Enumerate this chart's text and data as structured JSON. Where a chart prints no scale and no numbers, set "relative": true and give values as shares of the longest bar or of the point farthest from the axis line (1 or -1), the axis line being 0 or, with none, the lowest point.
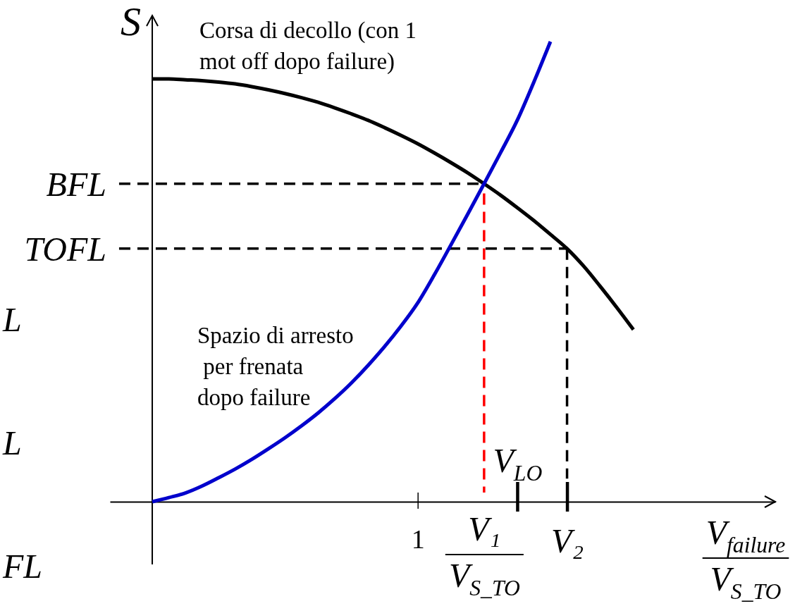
{
  "chart_data": {
    "type": "line",
    "ylabel": "S",
    "xlabel": "V$_{failure}$\nV$_{S_TO}$",
    "relative": true,
    "categories": [
      null,
      null,
      null,
      null,
      null,
      null,
      null,
      null,
      null,
      null,
      null,
      null,
      null,
      null,
      null,
      null,
      null,
      null,
      "1",
      null,
      null,
      null,
      "V₁\nV$_{S_TO}$",
      null,
      "V$_{LO}$",
      null,
      null,
      "V₂",
      null,
      null,
      null,
      null,
      null,
      null,
      null,
      null,
      null,
      null,
      null,
      null
    ],
    "series": [
      {
        "name": "Corsa di decollo (con 1\nmot off dopo failure)",
        "color": "#000000",
        "values": [
          null,
          null,
          0.919,
          0.919,
          0.917,
          0.915,
          0.912,
          0.908,
          0.902,
          0.895,
          0.887,
          0.878,
          0.868,
          0.856,
          0.843,
          0.829,
          0.813,
          0.796,
          0.778,
          0.758,
          0.737,
          0.715,
          0.691,
          0.666,
          0.639,
          0.611,
          0.581,
          0.55,
          0.512,
          0.468,
          0.422,
          0.374,
          null,
          null,
          null,
          null,
          null,
          null,
          null,
          null
        ]
      },
      {
        "name": "Spazio di arresto\n per frenata\ndopo failure",
        "color": "#0000cc",
        "values": [
          null,
          null,
          0,
          0.009,
          0.019,
          0.034,
          0.052,
          0.071,
          0.092,
          0.115,
          0.139,
          0.165,
          0.193,
          0.224,
          0.258,
          0.296,
          0.337,
          0.382,
          0.432,
          0.493,
          0.558,
          0.624,
          0.691,
          0.759,
          0.829,
          0.912,
          1,
          null,
          null,
          null,
          null,
          null,
          null,
          null,
          null,
          null,
          null,
          null,
          null,
          null
        ]
      },
      {
        "name": "BFL",
        "color": "#000000",
        "line_style": "dashed",
        "values": [
          0.691,
          0.691,
          0.691,
          0.691,
          0.691,
          0.691,
          0.691,
          0.691,
          0.691,
          0.691,
          0.691,
          0.691,
          0.691,
          0.691,
          0.691,
          0.691,
          0.691,
          0.691,
          0.691,
          0.691,
          0.691,
          0.691,
          0.691,
          null,
          null,
          null,
          null,
          null,
          null,
          null,
          null,
          null,
          null,
          null,
          null,
          null,
          null,
          null,
          null,
          null
        ]
      },
      {
        "name": "TOFL",
        "color": "#000000",
        "line_style": "dashed",
        "values": [
          0.55,
          0.55,
          0.55,
          0.55,
          0.55,
          0.55,
          0.55,
          0.55,
          0.55,
          0.55,
          0.55,
          0.55,
          0.55,
          0.55,
          0.55,
          0.55,
          0.55,
          0.55,
          0.55,
          0.55,
          0.55,
          0.55,
          0.55,
          0.55,
          0.55,
          0.55,
          0.55,
          0.55,
          null,
          null,
          null,
          null,
          null,
          null,
          null,
          null,
          null,
          null,
          null,
          null
        ]
      },
      {
        "color": "#ff0000",
        "line_style": "dashed",
        "x": [
          "V₁\nV$_{S_TO}$",
          "V₁\nV$_{S_TO}$"
        ],
        "values": [
          0.67,
          0.02
        ]
      },
      {
        "color": "#000000",
        "line_style": "dashed",
        "x": [
          "V₂",
          "V₂"
        ],
        "values": [
          0.55,
          0.05
        ]
      }
    ],
    "annotations": [
      "L",
      "L",
      "FL"
    ]
  }
}
